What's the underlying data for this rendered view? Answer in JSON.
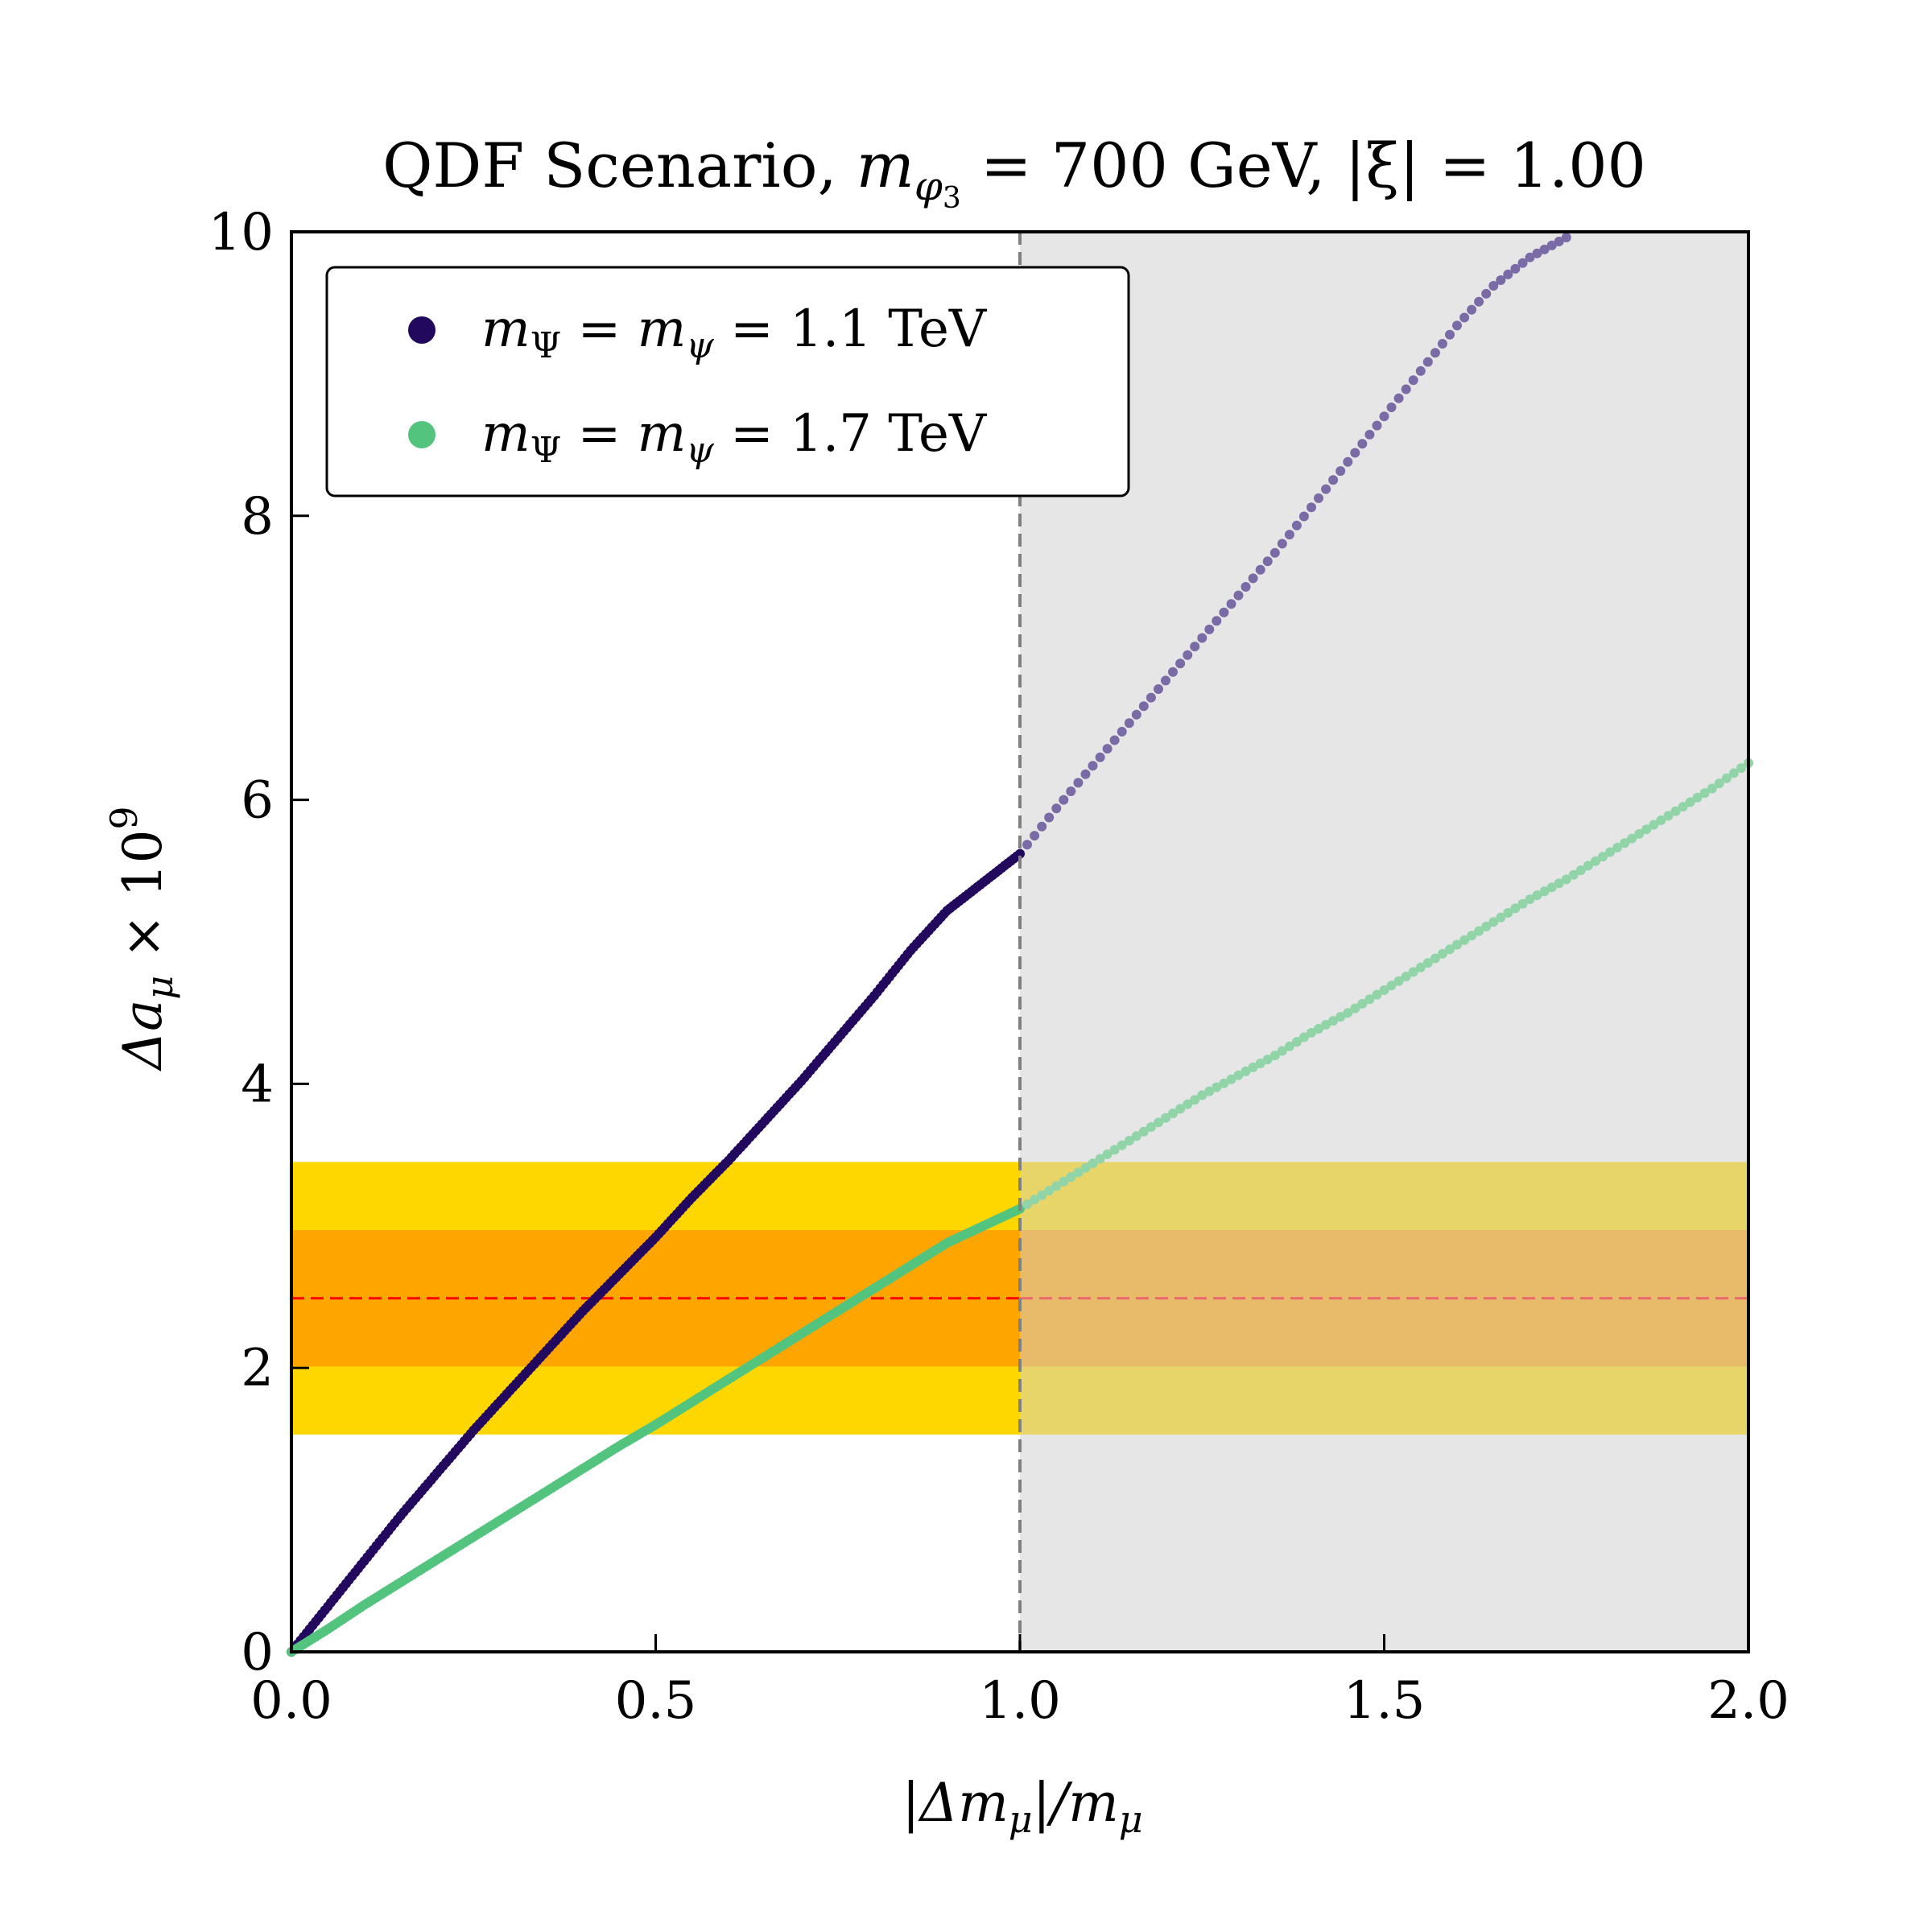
{
  "chart_data": {
    "type": "scatter",
    "title": "QDF Scenario, m_{φ₃} = 700 GeV, |ξ| = 1.00",
    "title_parts": {
      "prefix": "QDF Scenario, ",
      "mass_symbol": "m",
      "mass_subscript": "φ",
      "mass_subsubscript": "3",
      "mass_value": " = 700 GeV, ",
      "xi_part": "|ξ| = 1.00"
    },
    "xlabel": "|Δm_μ|/m_μ",
    "xlabel_parts": {
      "a": "|Δm",
      "sub1": "μ",
      "b": "|/m",
      "sub2": "μ"
    },
    "ylabel": "Δa_μ × 10^9",
    "ylabel_parts": {
      "a": "Δa",
      "sub": "μ",
      "b": " × 10",
      "sup": "9"
    },
    "xlim": [
      0,
      2
    ],
    "ylim": [
      0,
      10
    ],
    "xticks": [
      0.0,
      0.5,
      1.0,
      1.5,
      2.0
    ],
    "xtick_labels": [
      "0.0",
      "0.5",
      "1.0",
      "1.5",
      "2.0"
    ],
    "yticks": [
      0,
      2,
      4,
      6,
      8,
      10
    ],
    "ytick_labels": [
      "0",
      "2",
      "4",
      "6",
      "8",
      "10"
    ],
    "grid": false,
    "legend_position": "top-left",
    "excluded_region": {
      "x_from": 1.0,
      "x_to": 2.0,
      "color": "#e6e6e6"
    },
    "vertical_line": {
      "x": 1.0,
      "style": "dashed",
      "color": "#808080"
    },
    "bands": [
      {
        "name": "2-sigma",
        "y_from": 1.53,
        "y_to": 3.45,
        "color": "#ffd700",
        "color_excluded": "#e8d56a"
      },
      {
        "name": "1-sigma",
        "y_from": 2.01,
        "y_to": 2.97,
        "color": "#ffa500",
        "color_excluded": "#e8bb6a"
      }
    ],
    "central_line": {
      "y": 2.49,
      "style": "dashed",
      "color": "#ff0000",
      "color_excluded": "#e86a6a"
    },
    "series": [
      {
        "name": "m_Ψ = m_ψ = 1.1 TeV",
        "legend_parts": {
          "a": "m",
          "sub1": "Ψ",
          "b": " = m",
          "sub2": "ψ",
          "c": " = 1.1 TeV"
        },
        "color": "#23095e",
        "color_excluded": "#7a6aa6",
        "x": [
          0.0,
          0.05,
          0.1,
          0.15,
          0.2,
          0.25,
          0.3,
          0.35,
          0.4,
          0.45,
          0.5,
          0.55,
          0.6,
          0.65,
          0.7,
          0.75,
          0.8,
          0.85,
          0.9,
          0.95,
          1.0,
          1.05,
          1.1,
          1.15,
          1.2,
          1.25,
          1.3,
          1.35,
          1.4,
          1.45,
          1.5,
          1.55,
          1.6,
          1.65,
          1.7,
          1.75
        ],
        "y": [
          0.0,
          0.32,
          0.64,
          0.96,
          1.26,
          1.56,
          1.84,
          2.12,
          2.4,
          2.66,
          2.92,
          3.2,
          3.46,
          3.74,
          4.02,
          4.32,
          4.62,
          4.94,
          5.22,
          5.42,
          5.62,
          5.94,
          6.24,
          6.54,
          6.84,
          7.14,
          7.44,
          7.74,
          8.06,
          8.38,
          8.7,
          9.02,
          9.34,
          9.62,
          9.82,
          9.96
        ]
      },
      {
        "name": "m_Ψ = m_ψ = 1.7 TeV",
        "legend_parts": {
          "a": "m",
          "sub1": "Ψ",
          "b": " = m",
          "sub2": "ψ",
          "c": " = 1.7 TeV"
        },
        "color": "#52c47e",
        "color_excluded": "#90d4a8",
        "x": [
          0.0,
          0.05,
          0.1,
          0.15,
          0.2,
          0.25,
          0.3,
          0.35,
          0.4,
          0.45,
          0.5,
          0.55,
          0.6,
          0.65,
          0.7,
          0.75,
          0.8,
          0.85,
          0.9,
          0.95,
          1.0,
          1.05,
          1.1,
          1.15,
          1.2,
          1.25,
          1.3,
          1.35,
          1.4,
          1.45,
          1.5,
          1.55,
          1.6,
          1.65,
          1.7,
          1.75,
          1.8,
          1.85,
          1.9,
          1.95,
          2.0
        ],
        "y": [
          0.0,
          0.16,
          0.33,
          0.49,
          0.65,
          0.81,
          0.97,
          1.13,
          1.29,
          1.45,
          1.6,
          1.76,
          1.92,
          2.08,
          2.24,
          2.4,
          2.56,
          2.72,
          2.88,
          3.0,
          3.12,
          3.28,
          3.44,
          3.6,
          3.76,
          3.92,
          4.06,
          4.2,
          4.36,
          4.5,
          4.66,
          4.82,
          4.98,
          5.14,
          5.3,
          5.44,
          5.6,
          5.76,
          5.92,
          6.08,
          6.26
        ]
      }
    ]
  }
}
